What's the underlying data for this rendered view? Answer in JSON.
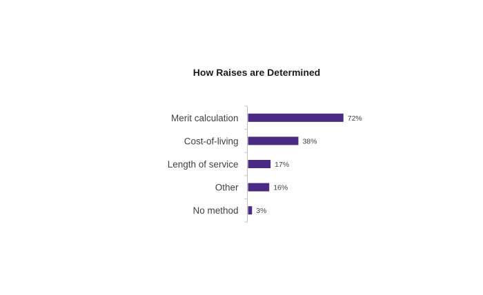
{
  "chart_data": {
    "type": "bar",
    "orientation": "horizontal",
    "title": "How Raises are Determined",
    "categories": [
      "Merit calculation",
      "Cost-of-living",
      "Length of service",
      "Other",
      "No method"
    ],
    "values": [
      72,
      38,
      17,
      16,
      3
    ],
    "value_labels": [
      "72%",
      "38%",
      "17%",
      "16%",
      "3%"
    ],
    "unit": "%",
    "xlim": [
      0,
      100
    ],
    "grid": false,
    "legend": "none",
    "bar_color": "#4b2a83"
  }
}
